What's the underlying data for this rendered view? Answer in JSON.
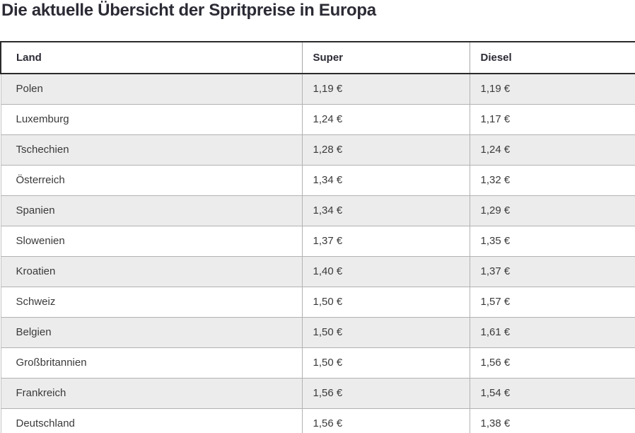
{
  "page": {
    "title": "Die aktuelle Übersicht der Spritpreise in Europa"
  },
  "table": {
    "columns": [
      "Land",
      "Super",
      "Diesel"
    ],
    "rows": [
      {
        "land": "Polen",
        "super": "1,19 €",
        "diesel": "1,19 €"
      },
      {
        "land": "Luxemburg",
        "super": "1,24 €",
        "diesel": "1,17 €"
      },
      {
        "land": "Tschechien",
        "super": "1,28 €",
        "diesel": "1,24 €"
      },
      {
        "land": "Österreich",
        "super": "1,34 €",
        "diesel": "1,32 €"
      },
      {
        "land": "Spanien",
        "super": "1,34 €",
        "diesel": "1,29 €"
      },
      {
        "land": "Slowenien",
        "super": "1,37 €",
        "diesel": "1,35 €"
      },
      {
        "land": "Kroatien",
        "super": "1,40 €",
        "diesel": "1,37 €"
      },
      {
        "land": "Schweiz",
        "super": "1,50 €",
        "diesel": "1,57 €"
      },
      {
        "land": "Belgien",
        "super": "1,50 €",
        "diesel": "1,61 €"
      },
      {
        "land": "Großbritannien",
        "super": "1,50 €",
        "diesel": "1,56 €"
      },
      {
        "land": "Frankreich",
        "super": "1,56 €",
        "diesel": "1,54 €"
      },
      {
        "land": "Deutschland",
        "super": "1,56 €",
        "diesel": "1,38 €"
      }
    ]
  },
  "colors": {
    "title_text": "#2b2b35",
    "header_border": "#2b2b2b",
    "row_alt_background": "#ececec",
    "row_border": "#b2b2b2",
    "column_border": "#a6a6a6",
    "cell_text": "#3a3a3a"
  },
  "chart_data": {
    "type": "table",
    "title": "Die aktuelle Übersicht der Spritpreise in Europa",
    "columns": [
      "Land",
      "Super",
      "Diesel"
    ],
    "rows": [
      [
        "Polen",
        "1,19 €",
        "1,19 €"
      ],
      [
        "Luxemburg",
        "1,24 €",
        "1,17 €"
      ],
      [
        "Tschechien",
        "1,28 €",
        "1,24 €"
      ],
      [
        "Österreich",
        "1,34 €",
        "1,32 €"
      ],
      [
        "Spanien",
        "1,34 €",
        "1,29 €"
      ],
      [
        "Slowenien",
        "1,37 €",
        "1,35 €"
      ],
      [
        "Kroatien",
        "1,40 €",
        "1,37 €"
      ],
      [
        "Schweiz",
        "1,50 €",
        "1,57 €"
      ],
      [
        "Belgien",
        "1,50 €",
        "1,61 €"
      ],
      [
        "Großbritannien",
        "1,50 €",
        "1,56 €"
      ],
      [
        "Frankreich",
        "1,56 €",
        "1,54 €"
      ],
      [
        "Deutschland",
        "1,56 €",
        "1,38 €"
      ]
    ],
    "series": [
      {
        "name": "Super (EUR)",
        "values": [
          1.19,
          1.24,
          1.28,
          1.34,
          1.34,
          1.37,
          1.4,
          1.5,
          1.5,
          1.5,
          1.56,
          1.56
        ]
      },
      {
        "name": "Diesel (EUR)",
        "values": [
          1.19,
          1.17,
          1.24,
          1.32,
          1.29,
          1.35,
          1.37,
          1.57,
          1.61,
          1.56,
          1.54,
          1.38
        ]
      }
    ],
    "categories": [
      "Polen",
      "Luxemburg",
      "Tschechien",
      "Österreich",
      "Spanien",
      "Slowenien",
      "Kroatien",
      "Schweiz",
      "Belgien",
      "Großbritannien",
      "Frankreich",
      "Deutschland"
    ],
    "currency": "EUR",
    "sort_order": "ascending by Super price"
  }
}
